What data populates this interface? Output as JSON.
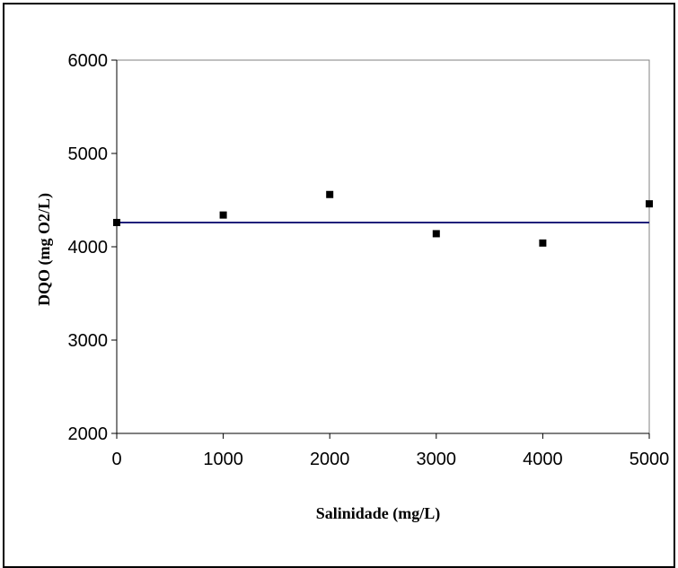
{
  "chart_data": {
    "type": "scatter",
    "title": "",
    "xlabel": "Salinidade (mg/L)",
    "ylabel": "DQO (mg O2/L)",
    "xlim": [
      0,
      5000
    ],
    "ylim": [
      2000,
      6000
    ],
    "x_ticks": [
      "0",
      "1000",
      "2000",
      "3000",
      "4000",
      "5000"
    ],
    "y_ticks": [
      "2000",
      "3000",
      "4000",
      "5000",
      "6000"
    ],
    "grid": false,
    "legend": "none",
    "series": [
      {
        "points": [
          {
            "x": 0,
            "y": 4260
          },
          {
            "x": 1000,
            "y": 4340
          },
          {
            "x": 2000,
            "y": 4560
          },
          {
            "x": 3000,
            "y": 4140
          },
          {
            "x": 4000,
            "y": 4040
          },
          {
            "x": 5000,
            "y": 4460
          }
        ],
        "color": "#000000",
        "marker": "square"
      }
    ],
    "reference_line": {
      "y": 4260,
      "color": "#1f1f7a"
    }
  }
}
